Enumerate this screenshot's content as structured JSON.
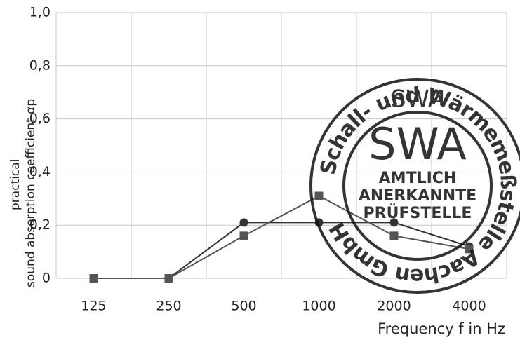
{
  "chart_data": {
    "type": "line",
    "ylabel": [
      "practical",
      "sound absorption coefficient αp"
    ],
    "xlabel": "Frequency  f in Hz",
    "categories": [
      "125",
      "250",
      "500",
      "1000",
      "2000",
      "4000"
    ],
    "series": [
      {
        "name": null,
        "marker": "circle",
        "color": "#333333",
        "values": [
          0,
          0,
          0.21,
          0.21,
          0.21,
          0.12
        ]
      },
      {
        "name": null,
        "marker": "square",
        "color": "#555555",
        "values": [
          0,
          0,
          0.16,
          0.31,
          0.16,
          0.11
        ]
      }
    ],
    "ylim": [
      0,
      1.0
    ],
    "yticks": [
      0,
      {
        "value": 0.2,
        "label": "0,2"
      },
      {
        "value": 0.4,
        "label": "0,4"
      },
      {
        "value": 0.6,
        "label": "0,6"
      },
      {
        "value": 0.8,
        "label": "0,8"
      },
      {
        "value": 1.0,
        "label": "1,0"
      }
    ],
    "grid": true,
    "stamp": {
      "logo_top": "SWA",
      "logo": "SWA",
      "ring": "Schall- und Wärmemeßstelle Aachen GmbH",
      "lines": [
        "AMTLICH",
        "ANERKANNTE",
        "PRÜFSTELLE"
      ]
    }
  }
}
